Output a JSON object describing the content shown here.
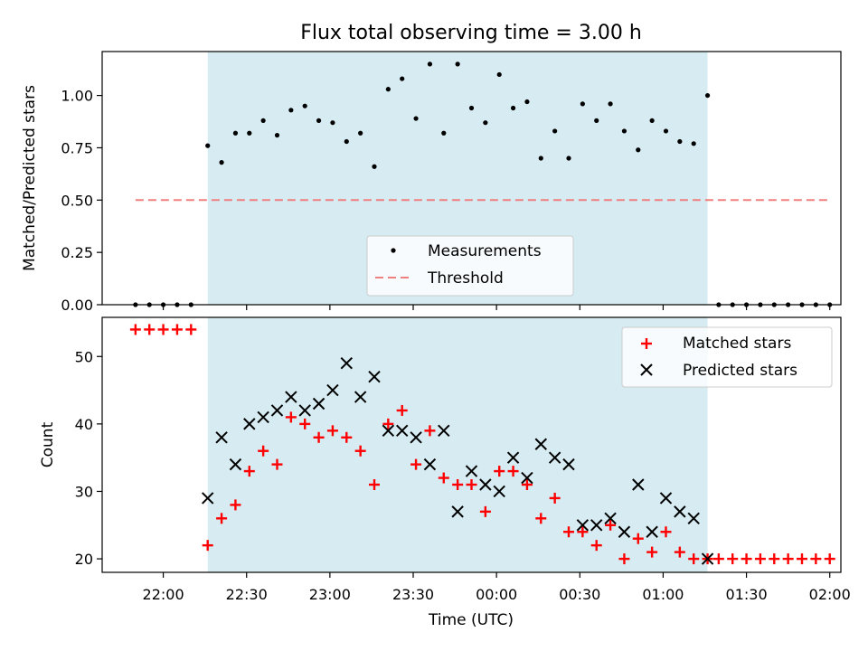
{
  "chart_data": [
    {
      "type": "scatter",
      "title": "Flux total observing time = 3.00 h",
      "ylabel": "Matched/Predicted stars",
      "xlabel": "",
      "ylim": [
        0,
        1.21
      ],
      "yticks": [
        0.0,
        0.25,
        0.5,
        0.75,
        1.0
      ],
      "ytick_labels": [
        "0.00",
        "0.25",
        "0.50",
        "0.75",
        "1.00"
      ],
      "shaded_window": [
        "22:16",
        "01:16"
      ],
      "shade_color": "#add8e6",
      "threshold": {
        "name": "Threshold",
        "value": 0.5,
        "x": [
          "21:50",
          "02:00"
        ],
        "color": "#f08080"
      },
      "legend": {
        "position": "lower center",
        "entries": [
          "Measurements",
          "Threshold"
        ]
      },
      "series": [
        {
          "name": "Measurements",
          "color": "#000000",
          "marker": "dot",
          "x": [
            "21:50",
            "21:55",
            "22:00",
            "22:05",
            "22:10",
            "22:16",
            "22:21",
            "22:26",
            "22:31",
            "22:36",
            "22:41",
            "22:46",
            "22:51",
            "22:56",
            "23:01",
            "23:06",
            "23:11",
            "23:16",
            "23:21",
            "23:26",
            "23:31",
            "23:36",
            "23:41",
            "23:46",
            "23:51",
            "23:56",
            "00:01",
            "00:06",
            "00:11",
            "00:16",
            "00:21",
            "00:26",
            "00:31",
            "00:36",
            "00:41",
            "00:46",
            "00:51",
            "00:56",
            "01:01",
            "01:06",
            "01:11",
            "01:16",
            "01:20",
            "01:25",
            "01:30",
            "01:35",
            "01:40",
            "01:45",
            "01:50",
            "01:55",
            "02:00"
          ],
          "y": [
            0,
            0,
            0,
            0,
            0,
            0.76,
            0.68,
            0.82,
            0.82,
            0.88,
            0.81,
            0.93,
            0.95,
            0.88,
            0.87,
            0.78,
            0.82,
            0.66,
            1.03,
            1.08,
            0.89,
            1.15,
            0.82,
            1.15,
            0.94,
            0.87,
            1.1,
            0.94,
            0.97,
            0.7,
            0.83,
            0.7,
            0.96,
            0.88,
            0.96,
            0.83,
            0.74,
            0.88,
            0.83,
            0.78,
            0.77,
            1.0,
            0,
            0,
            0,
            0,
            0,
            0,
            0,
            0,
            0
          ]
        }
      ]
    },
    {
      "type": "scatter",
      "title": "",
      "ylabel": "Count",
      "xlabel": "Time (UTC)",
      "ylim": [
        18,
        55.8
      ],
      "yticks": [
        20,
        30,
        40,
        50
      ],
      "ytick_labels": [
        "20",
        "30",
        "40",
        "50"
      ],
      "xlim": [
        "21:38",
        "02:04"
      ],
      "xticks": [
        "22:00",
        "22:30",
        "23:00",
        "23:30",
        "00:00",
        "00:30",
        "01:00",
        "01:30",
        "02:00"
      ],
      "shaded_window": [
        "22:16",
        "01:16"
      ],
      "shade_color": "#add8e6",
      "legend": {
        "position": "upper right",
        "entries": [
          "Matched stars",
          "Predicted stars"
        ]
      },
      "series": [
        {
          "name": "Matched stars",
          "color": "#ff0000",
          "marker": "plus",
          "x": [
            "21:50",
            "21:55",
            "22:00",
            "22:05",
            "22:10",
            "22:16",
            "22:21",
            "22:26",
            "22:31",
            "22:36",
            "22:41",
            "22:46",
            "22:51",
            "22:56",
            "23:01",
            "23:06",
            "23:11",
            "23:16",
            "23:21",
            "23:26",
            "23:31",
            "23:36",
            "23:41",
            "23:46",
            "23:51",
            "23:56",
            "00:01",
            "00:06",
            "00:11",
            "00:16",
            "00:21",
            "00:26",
            "00:31",
            "00:36",
            "00:41",
            "00:46",
            "00:51",
            "00:56",
            "01:01",
            "01:06",
            "01:11",
            "01:16",
            "01:20",
            "01:25",
            "01:30",
            "01:35",
            "01:40",
            "01:45",
            "01:50",
            "01:55",
            "02:00"
          ],
          "y": [
            54,
            54,
            54,
            54,
            54,
            22,
            26,
            28,
            33,
            36,
            34,
            41,
            40,
            38,
            39,
            38,
            36,
            31,
            40,
            42,
            34,
            39,
            32,
            31,
            31,
            27,
            33,
            33,
            31,
            26,
            29,
            24,
            24,
            22,
            25,
            20,
            23,
            21,
            24,
            21,
            20,
            20,
            20,
            20,
            20,
            20,
            20,
            20,
            20,
            20,
            20
          ]
        },
        {
          "name": "Predicted stars",
          "color": "#000000",
          "marker": "x",
          "x": [
            "22:16",
            "22:21",
            "22:26",
            "22:31",
            "22:36",
            "22:41",
            "22:46",
            "22:51",
            "22:56",
            "23:01",
            "23:06",
            "23:11",
            "23:16",
            "23:21",
            "23:26",
            "23:31",
            "23:36",
            "23:41",
            "23:46",
            "23:51",
            "23:56",
            "00:01",
            "00:06",
            "00:11",
            "00:16",
            "00:21",
            "00:26",
            "00:31",
            "00:36",
            "00:41",
            "00:46",
            "00:51",
            "00:56",
            "01:01",
            "01:06",
            "01:11",
            "01:16"
          ],
          "y": [
            29,
            38,
            34,
            40,
            41,
            42,
            44,
            42,
            43,
            45,
            49,
            44,
            47,
            39,
            39,
            38,
            34,
            39,
            27,
            33,
            31,
            30,
            35,
            32,
            37,
            35,
            34,
            25,
            25,
            26,
            24,
            31,
            24,
            29,
            27,
            26,
            20
          ]
        }
      ]
    }
  ]
}
